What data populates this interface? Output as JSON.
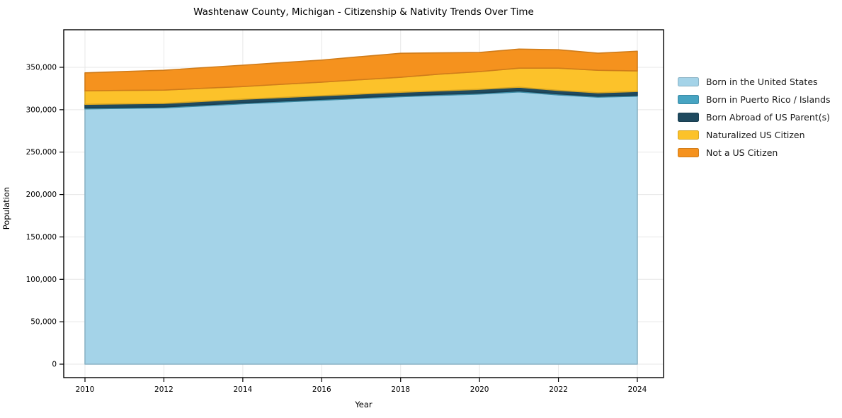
{
  "title": "Washtenaw County, Michigan - Citizenship & Nativity Trends Over Time",
  "xaxis_label": "Year",
  "yaxis_label": "Population",
  "colors": {
    "background": "#ffffff",
    "grid": "#e7e7e7",
    "spine": "#000000",
    "tick_text": "#000000"
  },
  "chart_data": {
    "type": "area",
    "stacked": true,
    "title": "Washtenaw County, Michigan - Citizenship & Nativity Trends Over Time",
    "xlabel": "Year",
    "ylabel": "Population",
    "x": [
      2010,
      2011,
      2012,
      2013,
      2014,
      2015,
      2016,
      2017,
      2018,
      2019,
      2020,
      2021,
      2022,
      2023,
      2024
    ],
    "x_ticks": [
      2010,
      2012,
      2014,
      2016,
      2018,
      2020,
      2022,
      2024
    ],
    "y_ticks": [
      0,
      50000,
      100000,
      150000,
      200000,
      250000,
      300000,
      350000
    ],
    "xlim": [
      2009.45,
      2024.65
    ],
    "ylim": [
      -16000,
      394000
    ],
    "grid": true,
    "legend_position": "outside-right",
    "series": [
      {
        "name": "Born in the United States",
        "color": "#a4d3e8",
        "values": [
          301000,
          301600,
          302200,
          304600,
          307000,
          309100,
          311200,
          313300,
          315300,
          317000,
          318500,
          321000,
          317500,
          314800,
          316000
        ]
      },
      {
        "name": "Born in Puerto Rico / Islands",
        "color": "#47a4c2",
        "values": [
          1100,
          1100,
          1100,
          1100,
          1100,
          1100,
          1100,
          1100,
          1200,
          1200,
          1200,
          1300,
          1200,
          1100,
          1100
        ]
      },
      {
        "name": "Born Abroad of US Parent(s)",
        "color": "#1f4a5f",
        "values": [
          4200,
          4200,
          4100,
          4100,
          4200,
          4200,
          4200,
          4200,
          4100,
          4100,
          4300,
          4200,
          4100,
          4100,
          4400
        ]
      },
      {
        "name": "Naturalized US Citizen",
        "color": "#fcc22a",
        "values": [
          16000,
          15900,
          15700,
          15500,
          15000,
          15600,
          16000,
          16900,
          17600,
          19700,
          20900,
          22500,
          26200,
          26500,
          24200
        ]
      },
      {
        "name": "Not a US Citizen",
        "color": "#f5921e",
        "values": [
          21200,
          22300,
          23400,
          24300,
          25200,
          25600,
          26000,
          27100,
          28300,
          25000,
          22600,
          22500,
          21700,
          20100,
          23300
        ]
      }
    ]
  }
}
